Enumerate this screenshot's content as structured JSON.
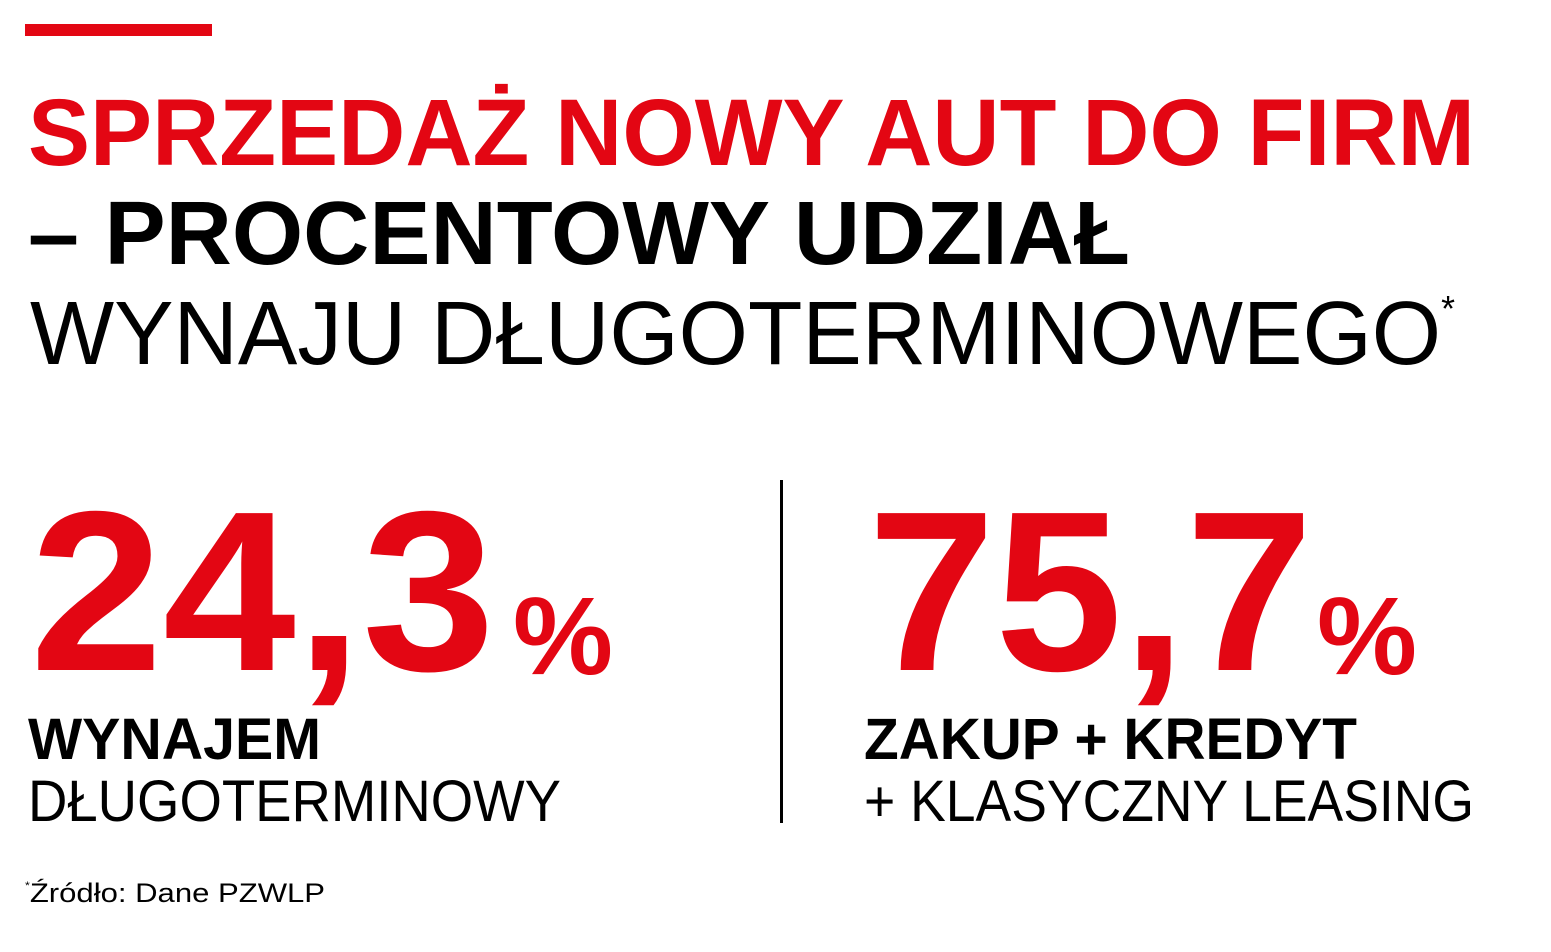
{
  "colors": {
    "accent": "#e30613",
    "text": "#000000"
  },
  "title": {
    "line1": "SPRZEDAŻ NOWY AUT DO FIRM",
    "line2": "– PROCENTOWY UDZIAŁ",
    "line3": "WYNAJU DŁUGOTERMINOWEGO",
    "asterisk": "*"
  },
  "stats": [
    {
      "value": "24,3",
      "unit": "%",
      "label_bold": "WYNAJEM",
      "label_regular": "DŁUGOTERMINOWY"
    },
    {
      "value": "75,7",
      "unit": "%",
      "label_bold": "ZAKUP + KREDYT",
      "label_regular": "+ KLASYCZNY LEASING"
    }
  ],
  "footnote": {
    "asterisk": "*",
    "text": "Źródło: Dane PZWLP"
  }
}
